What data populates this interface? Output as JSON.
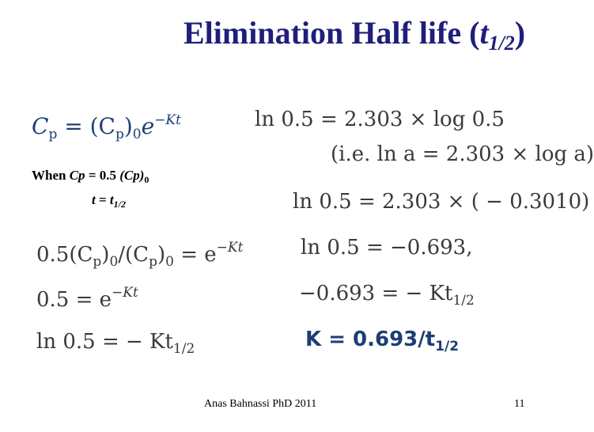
{
  "title": {
    "text": "Elimination Half life (",
    "var": "t",
    "sub": "1/2",
    "close": ")"
  },
  "left": {
    "cp_eq": {
      "lhs": "C",
      "lhs_sub": "p",
      "eq": " = (C",
      "mid_sub": "p",
      "paren": ")",
      "zero": "0",
      "e": "e",
      "exp": "−Kt"
    },
    "when_line": {
      "prefix": "When ",
      "cp": "Cp",
      "mid": " = 0.5 ",
      "cp0": "(Cp)",
      "zero": "0"
    },
    "t_line": {
      "t": "t",
      "eq": " = ",
      "t2": "t",
      "sub": "1/2"
    },
    "eq1": {
      "a": "0.5(C",
      "s1": "p",
      "b": ")",
      "z": "0",
      "c": "/(C",
      "s2": "p",
      "d": ")",
      "z2": "0",
      "e": " = e",
      "exp": "−Kt"
    },
    "eq2": {
      "a": "0.5 = e",
      "exp": "−Kt"
    },
    "eq3": {
      "a": "ln 0.5 = − Kt",
      "sub": "1/2"
    }
  },
  "right": {
    "r1": "ln 0.5 = 2.303 × log 0.5",
    "r2": "(i.e. ln a = 2.303 × log a)",
    "r3": "ln 0.5 = 2.303 × ( − 0.3010)",
    "r4": "ln 0.5 = −0.693,",
    "r5": {
      "a": "−0.693 = − Kt",
      "sub": "1/2"
    },
    "r6": {
      "a": "K = 0.693/t",
      "sub": "1/2"
    }
  },
  "footer": {
    "author": "Anas Bahnassi PhD 2011",
    "page": "11"
  }
}
